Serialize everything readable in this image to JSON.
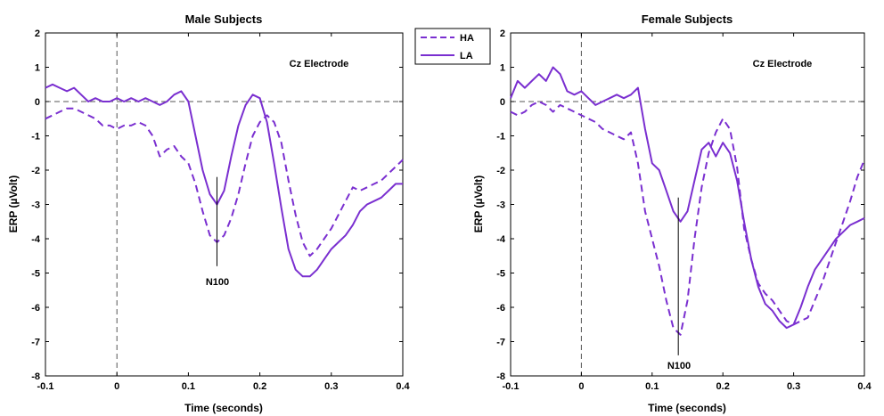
{
  "colors": {
    "series": "#7a2fd0",
    "axes": "#000000",
    "refline": "#555555"
  },
  "legend": {
    "placement": "between-panels-top",
    "entries": [
      "HA",
      "LA"
    ]
  },
  "chart_data": [
    {
      "type": "line",
      "title": "Male Subjects",
      "xlabel": "Time (seconds)",
      "ylabel": "ERP (µVolt)",
      "xlim": [
        -0.1,
        0.4
      ],
      "ylim": [
        -8,
        2
      ],
      "xticks": [
        -0.1,
        0,
        0.1,
        0.2,
        0.3,
        0.4
      ],
      "yticks": [
        2,
        1,
        0,
        -1,
        -2,
        -3,
        -4,
        -5,
        -6,
        -7,
        -8
      ],
      "xtick_labels": [
        "-0.1",
        "0",
        "0.1",
        "0.2",
        "0.3",
        "0.4"
      ],
      "ytick_labels": [
        "2",
        "1",
        "0",
        "-1",
        "-2",
        "-3",
        "-4",
        "-5",
        "-6",
        "-7",
        "-8"
      ],
      "grid": false,
      "electrode_label": "Cz Electrode",
      "peak_label": "N100",
      "peak_marker": {
        "x": 0.14,
        "y_top": -2.2,
        "y_bottom": -4.8
      },
      "series": [
        {
          "name": "HA",
          "style": "dashed",
          "x": [
            -0.1,
            -0.09,
            -0.08,
            -0.07,
            -0.06,
            -0.05,
            -0.04,
            -0.03,
            -0.02,
            -0.01,
            0.0,
            0.01,
            0.02,
            0.03,
            0.04,
            0.05,
            0.06,
            0.07,
            0.08,
            0.09,
            0.1,
            0.11,
            0.12,
            0.13,
            0.14,
            0.15,
            0.16,
            0.17,
            0.18,
            0.19,
            0.2,
            0.21,
            0.22,
            0.23,
            0.24,
            0.25,
            0.26,
            0.27,
            0.28,
            0.29,
            0.3,
            0.31,
            0.32,
            0.33,
            0.34,
            0.35,
            0.36,
            0.37,
            0.38,
            0.39,
            0.4
          ],
          "y": [
            -0.5,
            -0.4,
            -0.3,
            -0.2,
            -0.2,
            -0.3,
            -0.4,
            -0.5,
            -0.7,
            -0.7,
            -0.8,
            -0.7,
            -0.7,
            -0.6,
            -0.7,
            -1.0,
            -1.6,
            -1.4,
            -1.3,
            -1.6,
            -1.8,
            -2.4,
            -3.2,
            -3.9,
            -4.1,
            -3.9,
            -3.4,
            -2.7,
            -1.8,
            -1.0,
            -0.6,
            -0.4,
            -0.6,
            -1.2,
            -2.3,
            -3.3,
            -4.1,
            -4.5,
            -4.3,
            -4.0,
            -3.7,
            -3.3,
            -2.9,
            -2.5,
            -2.6,
            -2.5,
            -2.4,
            -2.3,
            -2.1,
            -1.9,
            -1.7
          ]
        },
        {
          "name": "LA",
          "style": "solid",
          "x": [
            -0.1,
            -0.09,
            -0.08,
            -0.07,
            -0.06,
            -0.05,
            -0.04,
            -0.03,
            -0.02,
            -0.01,
            0.0,
            0.01,
            0.02,
            0.03,
            0.04,
            0.05,
            0.06,
            0.07,
            0.08,
            0.09,
            0.1,
            0.11,
            0.12,
            0.13,
            0.14,
            0.15,
            0.16,
            0.17,
            0.18,
            0.19,
            0.2,
            0.21,
            0.22,
            0.23,
            0.24,
            0.25,
            0.26,
            0.27,
            0.28,
            0.29,
            0.3,
            0.31,
            0.32,
            0.33,
            0.34,
            0.35,
            0.36,
            0.37,
            0.38,
            0.39,
            0.4
          ],
          "y": [
            0.4,
            0.5,
            0.4,
            0.3,
            0.4,
            0.2,
            0.0,
            0.1,
            0.0,
            0.0,
            0.1,
            0.0,
            0.1,
            0.0,
            0.1,
            0.0,
            -0.1,
            0.0,
            0.2,
            0.3,
            0.0,
            -1.0,
            -2.0,
            -2.7,
            -3.0,
            -2.6,
            -1.6,
            -0.7,
            -0.1,
            0.2,
            0.1,
            -0.6,
            -1.8,
            -3.1,
            -4.3,
            -4.9,
            -5.1,
            -5.1,
            -4.9,
            -4.6,
            -4.3,
            -4.1,
            -3.9,
            -3.6,
            -3.2,
            -3.0,
            -2.9,
            -2.8,
            -2.6,
            -2.4,
            -2.4
          ]
        }
      ]
    },
    {
      "type": "line",
      "title": "Female Subjects",
      "xlabel": "Time (seconds)",
      "ylabel": "ERP (µVolt)",
      "xlim": [
        -0.1,
        0.4
      ],
      "ylim": [
        -8,
        2
      ],
      "xticks": [
        -0.1,
        0,
        0.1,
        0.2,
        0.3,
        0.4
      ],
      "yticks": [
        2,
        1,
        0,
        -1,
        -2,
        -3,
        -4,
        -5,
        -6,
        -7,
        -8
      ],
      "xtick_labels": [
        "-0.1",
        "0",
        "0.1",
        "0.2",
        "0.3",
        "0.4"
      ],
      "ytick_labels": [
        "2",
        "1",
        "0",
        "-1",
        "-2",
        "-3",
        "-4",
        "-5",
        "-6",
        "-7",
        "-8"
      ],
      "grid": false,
      "electrode_label": "Cz Electrode",
      "peak_label": "N100",
      "peak_marker": {
        "x": 0.137,
        "y_top": -2.8,
        "y_bottom": -7.4
      },
      "series": [
        {
          "name": "HA",
          "style": "dashed",
          "x": [
            -0.1,
            -0.09,
            -0.08,
            -0.07,
            -0.06,
            -0.05,
            -0.04,
            -0.03,
            -0.02,
            -0.01,
            0.0,
            0.01,
            0.02,
            0.03,
            0.04,
            0.05,
            0.06,
            0.07,
            0.08,
            0.09,
            0.1,
            0.11,
            0.12,
            0.13,
            0.14,
            0.15,
            0.16,
            0.17,
            0.18,
            0.19,
            0.2,
            0.21,
            0.22,
            0.23,
            0.24,
            0.25,
            0.26,
            0.27,
            0.28,
            0.29,
            0.3,
            0.31,
            0.32,
            0.33,
            0.34,
            0.35,
            0.36,
            0.37,
            0.38,
            0.39,
            0.4
          ],
          "y": [
            -0.3,
            -0.4,
            -0.3,
            -0.1,
            0.0,
            -0.1,
            -0.3,
            -0.1,
            -0.2,
            -0.3,
            -0.4,
            -0.5,
            -0.6,
            -0.8,
            -0.9,
            -1.0,
            -1.1,
            -0.9,
            -1.8,
            -3.2,
            -4.0,
            -4.8,
            -5.8,
            -6.6,
            -6.8,
            -5.8,
            -4.0,
            -2.5,
            -1.5,
            -0.9,
            -0.5,
            -0.8,
            -1.9,
            -3.7,
            -4.6,
            -5.3,
            -5.6,
            -5.8,
            -6.1,
            -6.4,
            -6.5,
            -6.4,
            -6.3,
            -5.8,
            -5.3,
            -4.7,
            -4.1,
            -3.5,
            -2.9,
            -2.2,
            -1.7
          ]
        },
        {
          "name": "LA",
          "style": "solid",
          "x": [
            -0.1,
            -0.09,
            -0.08,
            -0.07,
            -0.06,
            -0.05,
            -0.04,
            -0.03,
            -0.02,
            -0.01,
            0.0,
            0.01,
            0.02,
            0.03,
            0.04,
            0.05,
            0.06,
            0.07,
            0.08,
            0.09,
            0.1,
            0.11,
            0.12,
            0.13,
            0.14,
            0.15,
            0.16,
            0.17,
            0.18,
            0.19,
            0.2,
            0.21,
            0.22,
            0.23,
            0.24,
            0.25,
            0.26,
            0.27,
            0.28,
            0.29,
            0.3,
            0.31,
            0.32,
            0.33,
            0.34,
            0.35,
            0.36,
            0.37,
            0.38,
            0.39,
            0.4
          ],
          "y": [
            0.1,
            0.6,
            0.4,
            0.6,
            0.8,
            0.6,
            1.0,
            0.8,
            0.3,
            0.2,
            0.3,
            0.1,
            -0.1,
            0.0,
            0.1,
            0.2,
            0.1,
            0.2,
            0.4,
            -0.8,
            -1.8,
            -2.0,
            -2.6,
            -3.2,
            -3.5,
            -3.2,
            -2.3,
            -1.4,
            -1.2,
            -1.6,
            -1.2,
            -1.5,
            -2.3,
            -3.5,
            -4.6,
            -5.4,
            -5.9,
            -6.1,
            -6.4,
            -6.6,
            -6.5,
            -6.0,
            -5.4,
            -4.9,
            -4.6,
            -4.3,
            -4.0,
            -3.8,
            -3.6,
            -3.5,
            -3.4
          ]
        }
      ]
    }
  ]
}
